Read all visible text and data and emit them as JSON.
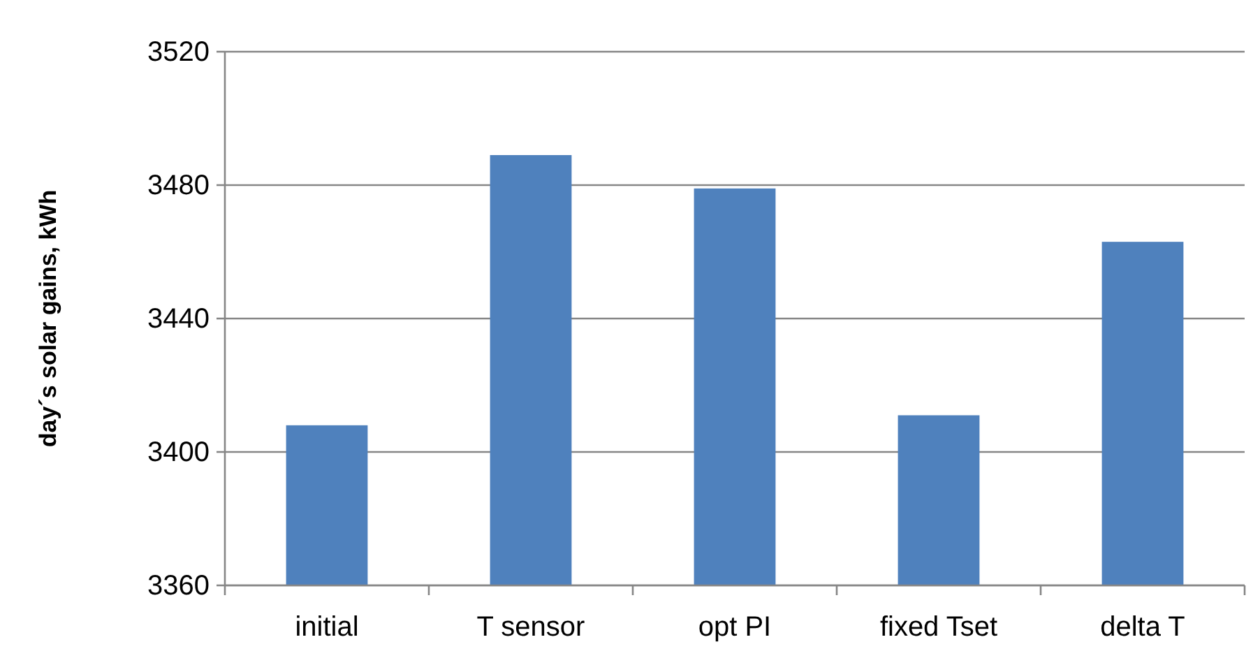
{
  "chart_data": {
    "type": "bar",
    "ylabel": "day´s solar gains, kWh",
    "categories": [
      "initial",
      "T sensor",
      "opt PI",
      "fixed Tset",
      "delta T"
    ],
    "values": [
      3408,
      3489,
      3479,
      3411,
      3463
    ],
    "color": "#4f81bd",
    "ylim": [
      3360,
      3520
    ],
    "yticks": [
      3360,
      3400,
      3440,
      3480,
      3520
    ],
    "grid": "y"
  }
}
